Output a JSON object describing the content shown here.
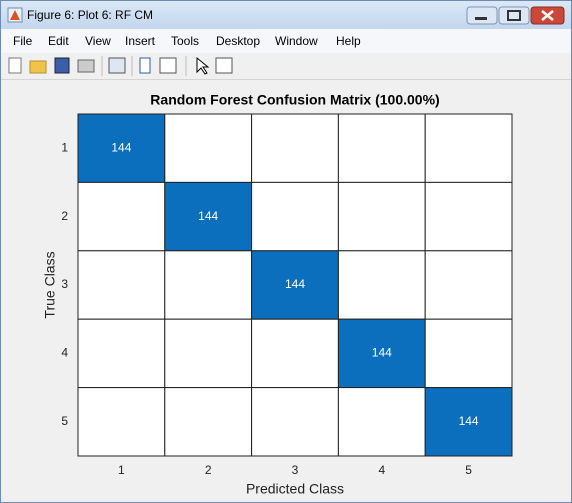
{
  "window": {
    "title": "Figure 6: Plot 6: RF CM",
    "menu": [
      "File",
      "Edit",
      "View",
      "Insert",
      "Tools",
      "Desktop",
      "Window",
      "Help"
    ]
  },
  "chart_data": {
    "type": "heatmap",
    "title": "Random Forest Confusion Matrix (100.00%)",
    "xlabel": "Predicted Class",
    "ylabel": "True Class",
    "x_categories": [
      "1",
      "2",
      "3",
      "4",
      "5"
    ],
    "y_categories": [
      "1",
      "2",
      "3",
      "4",
      "5"
    ],
    "values": [
      [
        144,
        0,
        0,
        0,
        0
      ],
      [
        0,
        144,
        0,
        0,
        0
      ],
      [
        0,
        0,
        144,
        0,
        0
      ],
      [
        0,
        0,
        0,
        144,
        0
      ],
      [
        0,
        0,
        0,
        0,
        144
      ]
    ],
    "color": "#0b6fbd"
  }
}
